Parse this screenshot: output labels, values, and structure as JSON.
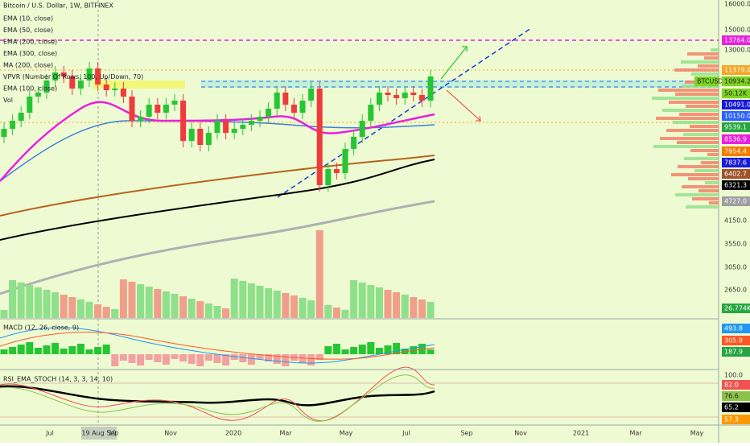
{
  "header": {
    "symbol": "Bitcoin / U.S. Dollar, 1W, BITFINEX"
  },
  "main_legend": [
    "EMA (10, close)",
    "EMA (50, close)",
    "EMA (200, close)",
    "EMA (300, close)",
    "MA (200, close)",
    "VPVR (Number Of Rows, 100, Up/Down, 70)",
    "EMA (100, close)",
    "Vol"
  ],
  "price_axis": [
    {
      "label": "16000.0"
    },
    {
      "label": "15000.0"
    },
    {
      "label": "13764.0",
      "color": "#e91ee0"
    },
    {
      "label": "13000.0"
    },
    {
      "label": "11379.0",
      "color": "#f5a623"
    },
    {
      "label": "BTCUSD",
      "color": "#7ed321"
    },
    {
      "label": "10934.2",
      "color": "#7ed321"
    },
    {
      "label": "50.12K",
      "color": "#7ed321"
    },
    {
      "label": "10491.0",
      "color": "#1a1adb"
    },
    {
      "label": "10150.0",
      "color": "#2962ff"
    },
    {
      "label": "9539.1",
      "color": "#26a643"
    },
    {
      "label": "8536.9",
      "color": "#e91ee0"
    },
    {
      "label": "7954.4",
      "color": "#f57c00"
    },
    {
      "label": "7837.6",
      "color": "#1a1adb"
    },
    {
      "label": "6402.7",
      "color": "#a0522d"
    },
    {
      "label": "6321.3",
      "color": "#000000"
    },
    {
      "label": "4727.0",
      "color": "#9e9e9e"
    },
    {
      "label": "4150.0"
    },
    {
      "label": "3550.0"
    },
    {
      "label": "3050.0"
    },
    {
      "label": "2650.0"
    },
    {
      "label": "26.774K",
      "color": "#26a643"
    }
  ],
  "macd": {
    "legend": "MACD (12, 26, close, 9)",
    "axis": [
      {
        "label": "493.8",
        "color": "#2196f3"
      },
      {
        "label": "305.9",
        "color": "#ff5722"
      },
      {
        "label": "187.9",
        "color": "#26a643"
      }
    ]
  },
  "rsi": {
    "legend": "RSI_EMA_STOCH (14, 3, 3, 14, 10)",
    "axis": [
      {
        "label": "100.0"
      },
      {
        "label": "82.0",
        "color": "#ef5350"
      },
      {
        "label": "76.6",
        "color": "#8bc34a"
      },
      {
        "label": "65.2",
        "color": "#000000"
      },
      {
        "label": "57.3",
        "color": "#ff9800"
      }
    ]
  },
  "time_axis": [
    "Jul",
    "19 Aug '19",
    "Sep",
    "Nov",
    "2020",
    "Mar",
    "May",
    "Jul",
    "Sep",
    "Nov",
    "2021",
    "Mar",
    "May"
  ]
}
